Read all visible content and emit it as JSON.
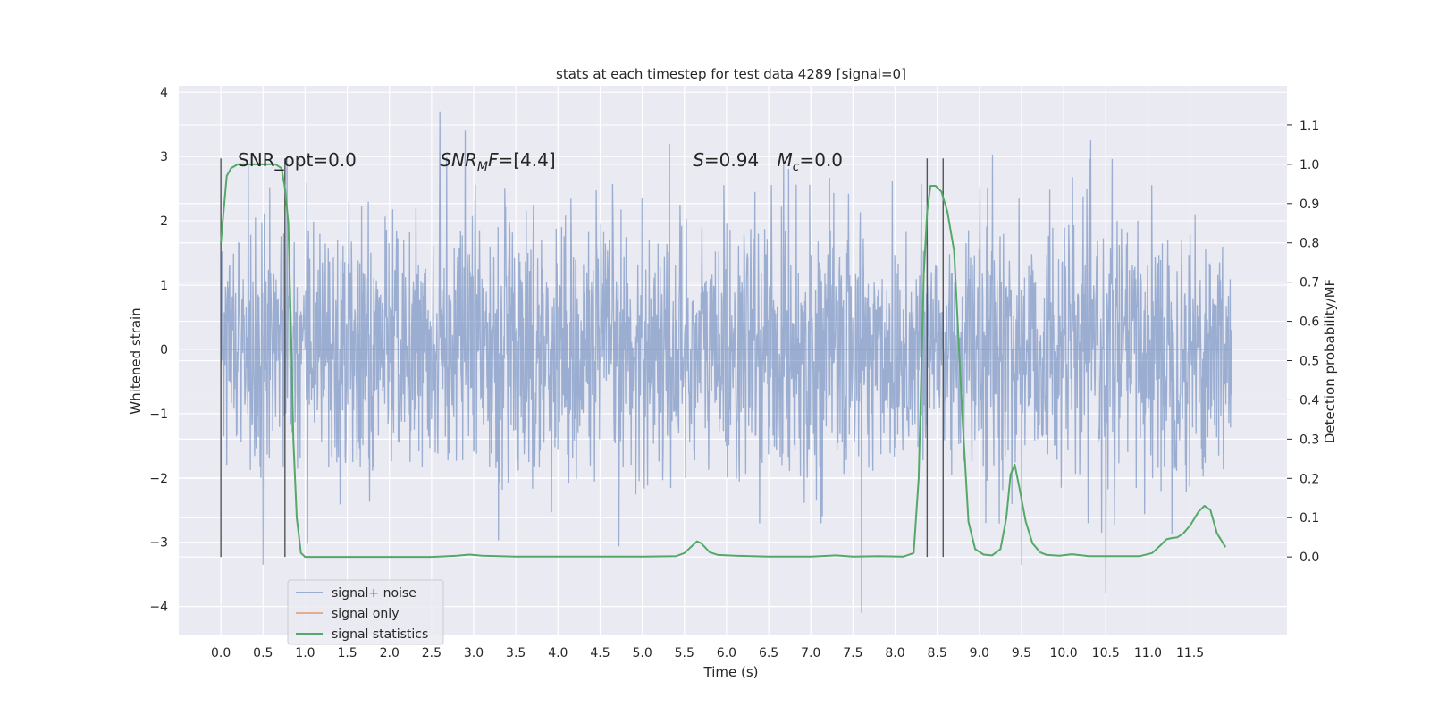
{
  "chart_data": {
    "type": "line",
    "title": "stats at each timestep for test data 4289 [signal=0]",
    "xlabel": "Time (s)",
    "ylabel_left": "Whitened strain",
    "ylabel_right": "Detection probability/MF",
    "xlim": [
      -0.5,
      12.65
    ],
    "ylim_left": [
      -4.45,
      4.1
    ],
    "ylim_right": [
      -0.2,
      1.2
    ],
    "x_ticks": [
      0.0,
      0.5,
      1.0,
      1.5,
      2.0,
      2.5,
      3.0,
      3.5,
      4.0,
      4.5,
      5.0,
      5.5,
      6.0,
      6.5,
      7.0,
      7.5,
      8.0,
      8.5,
      9.0,
      9.5,
      10.0,
      10.5,
      11.0,
      11.5
    ],
    "x_tick_labels": [
      "0.0",
      "0.5",
      "1.0",
      "1.5",
      "2.0",
      "2.5",
      "3.0",
      "3.5",
      "4.0",
      "4.5",
      "5.0",
      "5.5",
      "6.0",
      "6.5",
      "7.0",
      "7.5",
      "8.0",
      "8.5",
      "9.0",
      "9.5",
      "10.0",
      "10.5",
      "11.0",
      "11.5"
    ],
    "y_left_ticks": [
      -4,
      -3,
      -2,
      -1,
      0,
      1,
      2,
      3,
      4
    ],
    "y_left_tick_labels": [
      "−4",
      "−3",
      "−2",
      "−1",
      "0",
      "1",
      "2",
      "3",
      "4"
    ],
    "y_right_ticks": [
      0.0,
      0.1,
      0.2,
      0.3,
      0.4,
      0.5,
      0.6,
      0.7,
      0.8,
      0.9,
      1.0,
      1.1
    ],
    "y_right_tick_labels": [
      "0.0",
      "0.1",
      "0.2",
      "0.3",
      "0.4",
      "0.5",
      "0.6",
      "0.7",
      "0.8",
      "0.9",
      "1.0",
      "1.1"
    ],
    "grid": true,
    "legend_position": "lower-left",
    "series": [
      {
        "name": "signal+ noise",
        "color": "#4c72b0",
        "axis": "left",
        "x_range": [
          0.0,
          11.99
        ],
        "y_range_approx": [
          -4.1,
          3.7
        ],
        "notable_peaks": [
          [
            2.6,
            3.7
          ],
          [
            2.9,
            3.4
          ],
          [
            7.6,
            -4.1
          ],
          [
            10.5,
            -3.8
          ],
          [
            0.5,
            -3.35
          ],
          [
            9.5,
            -3.35
          ]
        ]
      },
      {
        "name": "signal only",
        "color": "#dd8452",
        "axis": "left",
        "x": [
          0.0,
          11.99
        ],
        "y": [
          0.0,
          0.0
        ]
      },
      {
        "name": "signal statistics",
        "color": "#55a868",
        "axis": "right",
        "x": [
          0.0,
          0.07,
          0.12,
          0.2,
          0.3,
          0.5,
          0.65,
          0.72,
          0.76,
          0.8,
          0.83,
          0.86,
          0.9,
          0.95,
          1.0,
          1.5,
          2.0,
          2.5,
          2.8,
          2.95,
          3.1,
          3.5,
          4.0,
          5.0,
          5.4,
          5.5,
          5.6,
          5.65,
          5.7,
          5.8,
          5.9,
          6.1,
          6.5,
          7.0,
          7.3,
          7.5,
          7.8,
          8.1,
          8.22,
          8.28,
          8.34,
          8.38,
          8.42,
          8.48,
          8.55,
          8.62,
          8.7,
          8.8,
          8.87,
          8.95,
          9.05,
          9.15,
          9.25,
          9.32,
          9.37,
          9.42,
          9.48,
          9.55,
          9.63,
          9.72,
          9.8,
          9.95,
          10.1,
          10.3,
          10.6,
          10.9,
          11.05,
          11.15,
          11.22,
          11.28,
          11.35,
          11.42,
          11.5,
          11.6,
          11.67,
          11.74,
          11.82,
          11.92
        ],
        "y": [
          0.8,
          0.97,
          0.99,
          1.0,
          1.0,
          1.0,
          1.0,
          0.99,
          0.94,
          0.85,
          0.6,
          0.3,
          0.1,
          0.01,
          0.0,
          0.0,
          0.0,
          0.0,
          0.003,
          0.006,
          0.003,
          0.001,
          0.001,
          0.001,
          0.002,
          0.01,
          0.03,
          0.04,
          0.035,
          0.012,
          0.005,
          0.003,
          0.001,
          0.001,
          0.004,
          0.001,
          0.002,
          0.001,
          0.01,
          0.2,
          0.72,
          0.88,
          0.945,
          0.945,
          0.93,
          0.88,
          0.78,
          0.35,
          0.09,
          0.02,
          0.006,
          0.004,
          0.02,
          0.1,
          0.21,
          0.235,
          0.17,
          0.09,
          0.035,
          0.012,
          0.005,
          0.003,
          0.007,
          0.002,
          0.002,
          0.002,
          0.01,
          0.03,
          0.045,
          0.048,
          0.05,
          0.06,
          0.08,
          0.115,
          0.13,
          0.12,
          0.06,
          0.025
        ]
      }
    ],
    "vertical_lines": [
      0.0,
      0.76,
      8.38,
      8.57
    ],
    "annotations": [
      {
        "text": "SNR_opt=0.0",
        "x": 0.2,
        "y": 2.85,
        "italic": false
      },
      {
        "text": "SNR",
        "sub": "M",
        "tail": "F=[4.4]",
        "x": 2.6,
        "y": 2.85,
        "italic": true
      },
      {
        "text": "S",
        "tail": "=0.94",
        "x": 5.6,
        "y": 2.85,
        "italic": true
      },
      {
        "text": "M",
        "sub": "c",
        "tail": "=0.0",
        "x": 6.6,
        "y": 2.85,
        "italic": true
      }
    ]
  }
}
